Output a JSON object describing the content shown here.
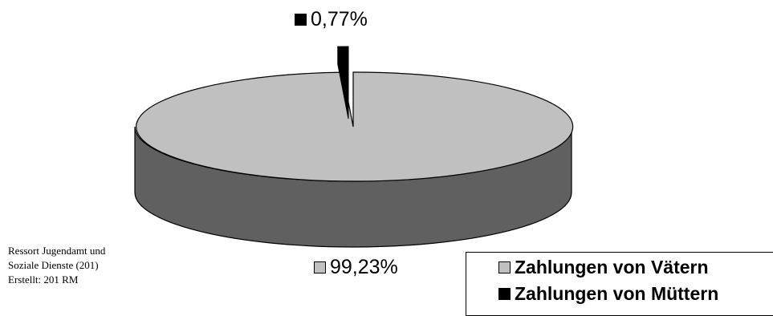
{
  "chart_data": {
    "type": "pie",
    "style": "3d",
    "slices": [
      {
        "label": "Zahlungen von Vätern",
        "value": 99.23,
        "value_label": "99,23%",
        "color": "#c0c0c0",
        "side_color": "#606060",
        "exploded": false
      },
      {
        "label": "Zahlungen von Müttern",
        "value": 0.77,
        "value_label": "0,77%",
        "color": "#000000",
        "side_color": "#000000",
        "exploded": true
      }
    ],
    "legend": {
      "placement": "bottom-right",
      "entries": [
        "Zahlungen von Vätern",
        "Zahlungen von Müttern"
      ]
    }
  },
  "credit": {
    "line1": "Ressort Jugendamt und",
    "line2": "Soziale Dienste (201)",
    "line3": "Erstellt: 201 RM"
  }
}
